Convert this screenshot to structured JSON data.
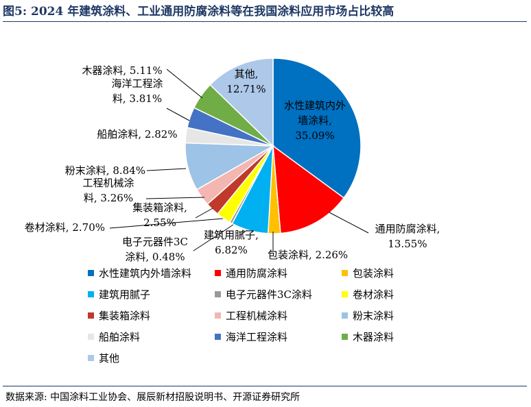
{
  "title": "图5:  2024 年建筑涂料、工业通用防腐涂料等在我国涂料应用市场占比较高",
  "source": "数据来源:  中国涂料工业协会、展辰新材招股说明书、开源证券研究所",
  "chart_data": {
    "type": "pie",
    "title": "",
    "unit": "%",
    "legend_position": "bottom",
    "slices": [
      {
        "name": "水性建筑内外墙涂料",
        "value": 35.09,
        "color": "#0070c0",
        "label_lines": [
          "水性建筑内外",
          "墙涂料,",
          "35.09%"
        ]
      },
      {
        "name": "通用防腐涂料",
        "value": 13.55,
        "color": "#ff0000",
        "label_lines": [
          "通用防腐涂料,",
          "13.55%"
        ]
      },
      {
        "name": "包装涂料",
        "value": 2.26,
        "color": "#ffc000",
        "label_lines": [
          "包装涂料, 2.26%"
        ]
      },
      {
        "name": "建筑用腻子",
        "value": 6.82,
        "color": "#00b0f0",
        "label_lines": [
          "建筑用腻子,",
          "6.82%"
        ]
      },
      {
        "name": "电子元器件3C涂料",
        "value": 0.48,
        "color": "#999999",
        "label_lines": [
          "电子元器件3C",
          "涂料, 0.48%"
        ]
      },
      {
        "name": "卷材涂料",
        "value": 2.7,
        "color": "#ffff00",
        "label_lines": [
          "卷材涂料, 2.70%"
        ]
      },
      {
        "name": "集装箱涂料",
        "value": 2.55,
        "color": "#c0392b",
        "label_lines": [
          "集装箱涂料,",
          "2.55%"
        ]
      },
      {
        "name": "工程机械涂料",
        "value": 3.26,
        "color": "#f4b6b1",
        "label_lines": [
          "工程机械涂",
          "料, 3.26%"
        ]
      },
      {
        "name": "粉末涂料",
        "value": 8.84,
        "color": "#9dc3e6",
        "label_lines": [
          "粉末涂料, 8.84%"
        ]
      },
      {
        "name": "船舶涂料",
        "value": 2.82,
        "color": "#e7e6e6",
        "label_lines": [
          "船舶涂料, 2.82%"
        ]
      },
      {
        "name": "海洋工程涂料",
        "value": 3.81,
        "color": "#4472c4",
        "label_lines": [
          "海洋工程涂",
          "料, 3.81%"
        ]
      },
      {
        "name": "木器涂料",
        "value": 5.11,
        "color": "#70ad47",
        "label_lines": [
          "木器涂料, 5.11%"
        ]
      },
      {
        "name": "其他",
        "value": 12.71,
        "color": "#adc8e8",
        "label_lines": [
          "其他,",
          "12.71%"
        ]
      }
    ]
  }
}
